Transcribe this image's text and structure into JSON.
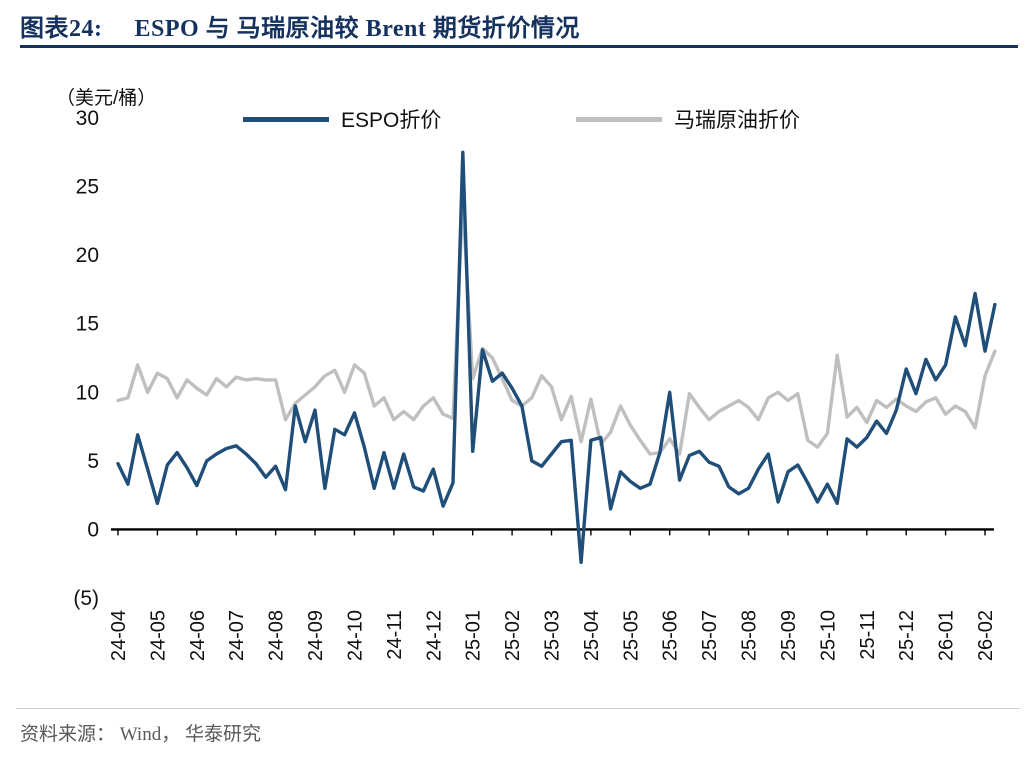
{
  "header": {
    "title_prefix": "图表24:",
    "title": "ESPO 与 马瑞原油较 Brent 期货折价情况"
  },
  "chart_data": {
    "type": "line",
    "title": "ESPO 与 马瑞原油较 Brent 期货折价情况",
    "unit_label": "（美元/桶）",
    "legend_position": "top",
    "grid": false,
    "ylim": [
      -5,
      30
    ],
    "y_ticks": [
      "30",
      "25",
      "20",
      "15",
      "10",
      "5",
      "0",
      "(5)"
    ],
    "y_tick_values": [
      30,
      25,
      20,
      15,
      10,
      5,
      0,
      -5
    ],
    "x_tick_labels": [
      "24-04",
      "24-05",
      "24-06",
      "24-07",
      "24-08",
      "24-09",
      "24-10",
      "24-11",
      "24-12",
      "25-01",
      "25-02",
      "25-03",
      "25-04",
      "25-05",
      "25-06",
      "25-07",
      "25-08",
      "25-09",
      "25-10",
      "25-11",
      "25-12",
      "26-01",
      "26-02"
    ],
    "points_per_month": 4,
    "series": [
      {
        "name": "ESPO折价",
        "color": "#1f4e79",
        "values": [
          4.8,
          3.3,
          6.9,
          4.4,
          1.9,
          4.7,
          5.6,
          4.5,
          3.2,
          5.0,
          5.5,
          5.9,
          6.1,
          5.5,
          4.8,
          3.8,
          4.6,
          2.9,
          9.0,
          6.4,
          8.7,
          3.0,
          7.3,
          6.9,
          8.5,
          6.0,
          3.0,
          5.6,
          3.0,
          5.5,
          3.1,
          2.8,
          4.4,
          1.7,
          3.4,
          27.5,
          5.7,
          13.1,
          10.8,
          11.4,
          10.3,
          9.0,
          5.0,
          4.6,
          5.5,
          6.4,
          6.5,
          -2.4,
          6.5,
          6.7,
          1.5,
          4.2,
          3.5,
          3.0,
          3.3,
          5.6,
          10.0,
          3.6,
          5.4,
          5.7,
          4.9,
          4.6,
          3.1,
          2.6,
          3.0,
          4.4,
          5.5,
          2.0,
          4.2,
          4.7,
          3.4,
          2.0,
          3.3,
          1.9,
          6.6,
          6.0,
          6.7,
          7.9,
          7.0,
          8.7,
          11.7,
          9.9,
          12.4,
          10.9,
          12.0,
          15.5,
          13.4,
          17.2,
          13.0,
          16.4
        ]
      },
      {
        "name": "马瑞原油折价",
        "color": "#bfbfbf",
        "values": [
          9.4,
          9.6,
          12.0,
          10.0,
          11.4,
          11.0,
          9.6,
          10.9,
          10.3,
          9.8,
          11.0,
          10.4,
          11.1,
          10.9,
          11.0,
          10.9,
          10.9,
          8.0,
          9.2,
          9.8,
          10.4,
          11.2,
          11.6,
          10.0,
          12.0,
          11.4,
          9.0,
          9.6,
          8.0,
          8.6,
          8.0,
          9.0,
          9.6,
          8.4,
          8.1,
          23.9,
          11.0,
          13.2,
          12.5,
          11.0,
          9.4,
          9.0,
          9.6,
          11.2,
          10.4,
          8.0,
          9.7,
          6.4,
          9.5,
          6.2,
          7.1,
          9.0,
          7.6,
          6.5,
          5.5,
          5.6,
          6.6,
          5.5,
          9.9,
          8.9,
          8.0,
          8.6,
          9.0,
          9.4,
          8.9,
          8.0,
          9.6,
          10.0,
          9.4,
          9.9,
          6.5,
          6.0,
          7.0,
          12.7,
          8.2,
          8.9,
          7.8,
          9.4,
          8.9,
          9.5,
          9.0,
          8.6,
          9.3,
          9.6,
          8.4,
          9.0,
          8.6,
          7.4,
          11.2,
          13.0
        ]
      }
    ],
    "colors": {
      "title_navy": "#15325f",
      "axis_black": "#000000",
      "source_gray": "#595959"
    }
  },
  "footer": {
    "source": "资料来源： Wind， 华泰研究"
  }
}
